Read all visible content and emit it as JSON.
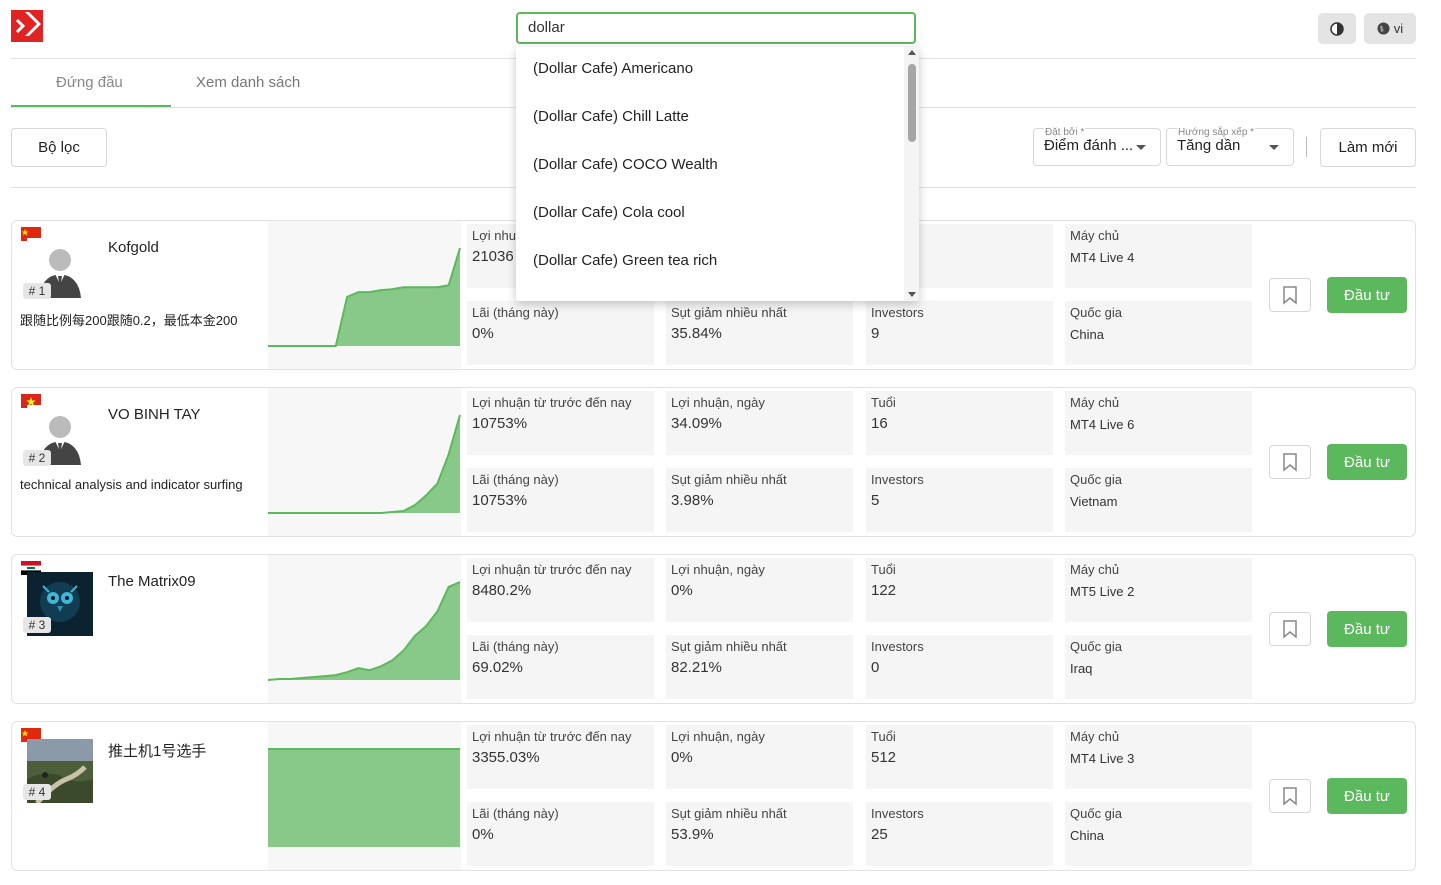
{
  "search": {
    "value": "dollar"
  },
  "header": {
    "lang_label": "vi"
  },
  "tabs": [
    {
      "label": "Đứng đầu"
    },
    {
      "label": "Xem danh sách"
    }
  ],
  "toolbar": {
    "filter_label": "Bộ lọc",
    "sort_by": {
      "label": "Đặt bởi *",
      "value": "Điểm đánh ..."
    },
    "sort_dir": {
      "label": "Hướng sắp xếp *",
      "value": "Tăng dần"
    },
    "refresh_label": "Làm mới"
  },
  "dropdown": {
    "items": [
      "(Dollar Cafe) Americano",
      "(Dollar Cafe) Chill Latte",
      "(Dollar Cafe) COCO Wealth",
      "(Dollar Cafe) Cola cool",
      "(Dollar Cafe) Green tea rich"
    ]
  },
  "labels": {
    "profit_total": "Lợi nhuận từ trước đến nay",
    "profit_day": "Lợi nhuận, ngày",
    "age": "Tuổi",
    "server": "Máy chủ",
    "profit_month": "Lãi (tháng này)",
    "max_drawdown": "Sụt giảm nhiều nhất",
    "investors": "Investors",
    "country": "Quốc gia",
    "invest_button": "Đầu tư"
  },
  "traders": [
    {
      "rank": "# 1",
      "name": "Kofgold",
      "flag": "china",
      "description": "跟随比例每200跟随0.2，最低本金200",
      "profit_total_label": "Lợi nhuậ",
      "profit_total": "21036",
      "profit_day": "",
      "age": "",
      "server": "MT4 Live 4",
      "profit_month": "0%",
      "max_drawdown": "35.84%",
      "investors": "9",
      "country": "China",
      "avatar": "person-silhouette",
      "equity_curve": [
        0,
        0,
        0,
        0,
        0,
        0,
        0,
        0.5,
        0.55,
        0.55,
        0.57,
        0.58,
        0.6,
        0.6,
        0.6,
        0.6,
        0.62,
        1.0
      ]
    },
    {
      "rank": "# 2",
      "name": "VO BINH TAY",
      "flag": "vietnam",
      "description": "technical analysis and indicator surfing",
      "profit_total": "10753%",
      "profit_day": "34.09%",
      "age": "16",
      "server": "MT4 Live 6",
      "profit_month": "10753%",
      "max_drawdown": "3.98%",
      "investors": "5",
      "country": "Vietnam",
      "avatar": "person-silhouette",
      "equity_curve": [
        0,
        0,
        0,
        0,
        0,
        0,
        0,
        0,
        0,
        0,
        0,
        0.01,
        0.02,
        0.08,
        0.18,
        0.3,
        0.6,
        1.0
      ]
    },
    {
      "rank": "# 3",
      "name": "The Matrix09",
      "flag": "iraq",
      "description": "",
      "profit_total": "8480.2%",
      "profit_day": "0%",
      "age": "122",
      "server": "MT5 Live 2",
      "profit_month": "69.02%",
      "max_drawdown": "82.21%",
      "investors": "0",
      "country": "Iraq",
      "avatar": "owl-image",
      "equity_curve": [
        0,
        0.01,
        0.01,
        0.02,
        0.03,
        0.04,
        0.05,
        0.08,
        0.12,
        0.1,
        0.14,
        0.2,
        0.3,
        0.45,
        0.55,
        0.7,
        0.95,
        1.0
      ]
    },
    {
      "rank": "# 4",
      "name": "推土机1号选手",
      "flag": "china",
      "description": "",
      "profit_total": "3355.03%",
      "profit_day": "0%",
      "age": "512",
      "server": "MT4 Live 3",
      "profit_month": "0%",
      "max_drawdown": "53.9%",
      "investors": "25",
      "country": "China",
      "avatar": "road-image",
      "equity_curve": [
        1,
        1,
        1,
        1,
        1,
        1,
        1,
        1,
        1,
        1,
        1,
        1,
        1,
        1,
        1,
        1,
        1,
        1
      ]
    }
  ],
  "colors": {
    "accent": "#5cb85c",
    "chart_fill": "#88c98a",
    "chart_line": "#5cb85c"
  }
}
